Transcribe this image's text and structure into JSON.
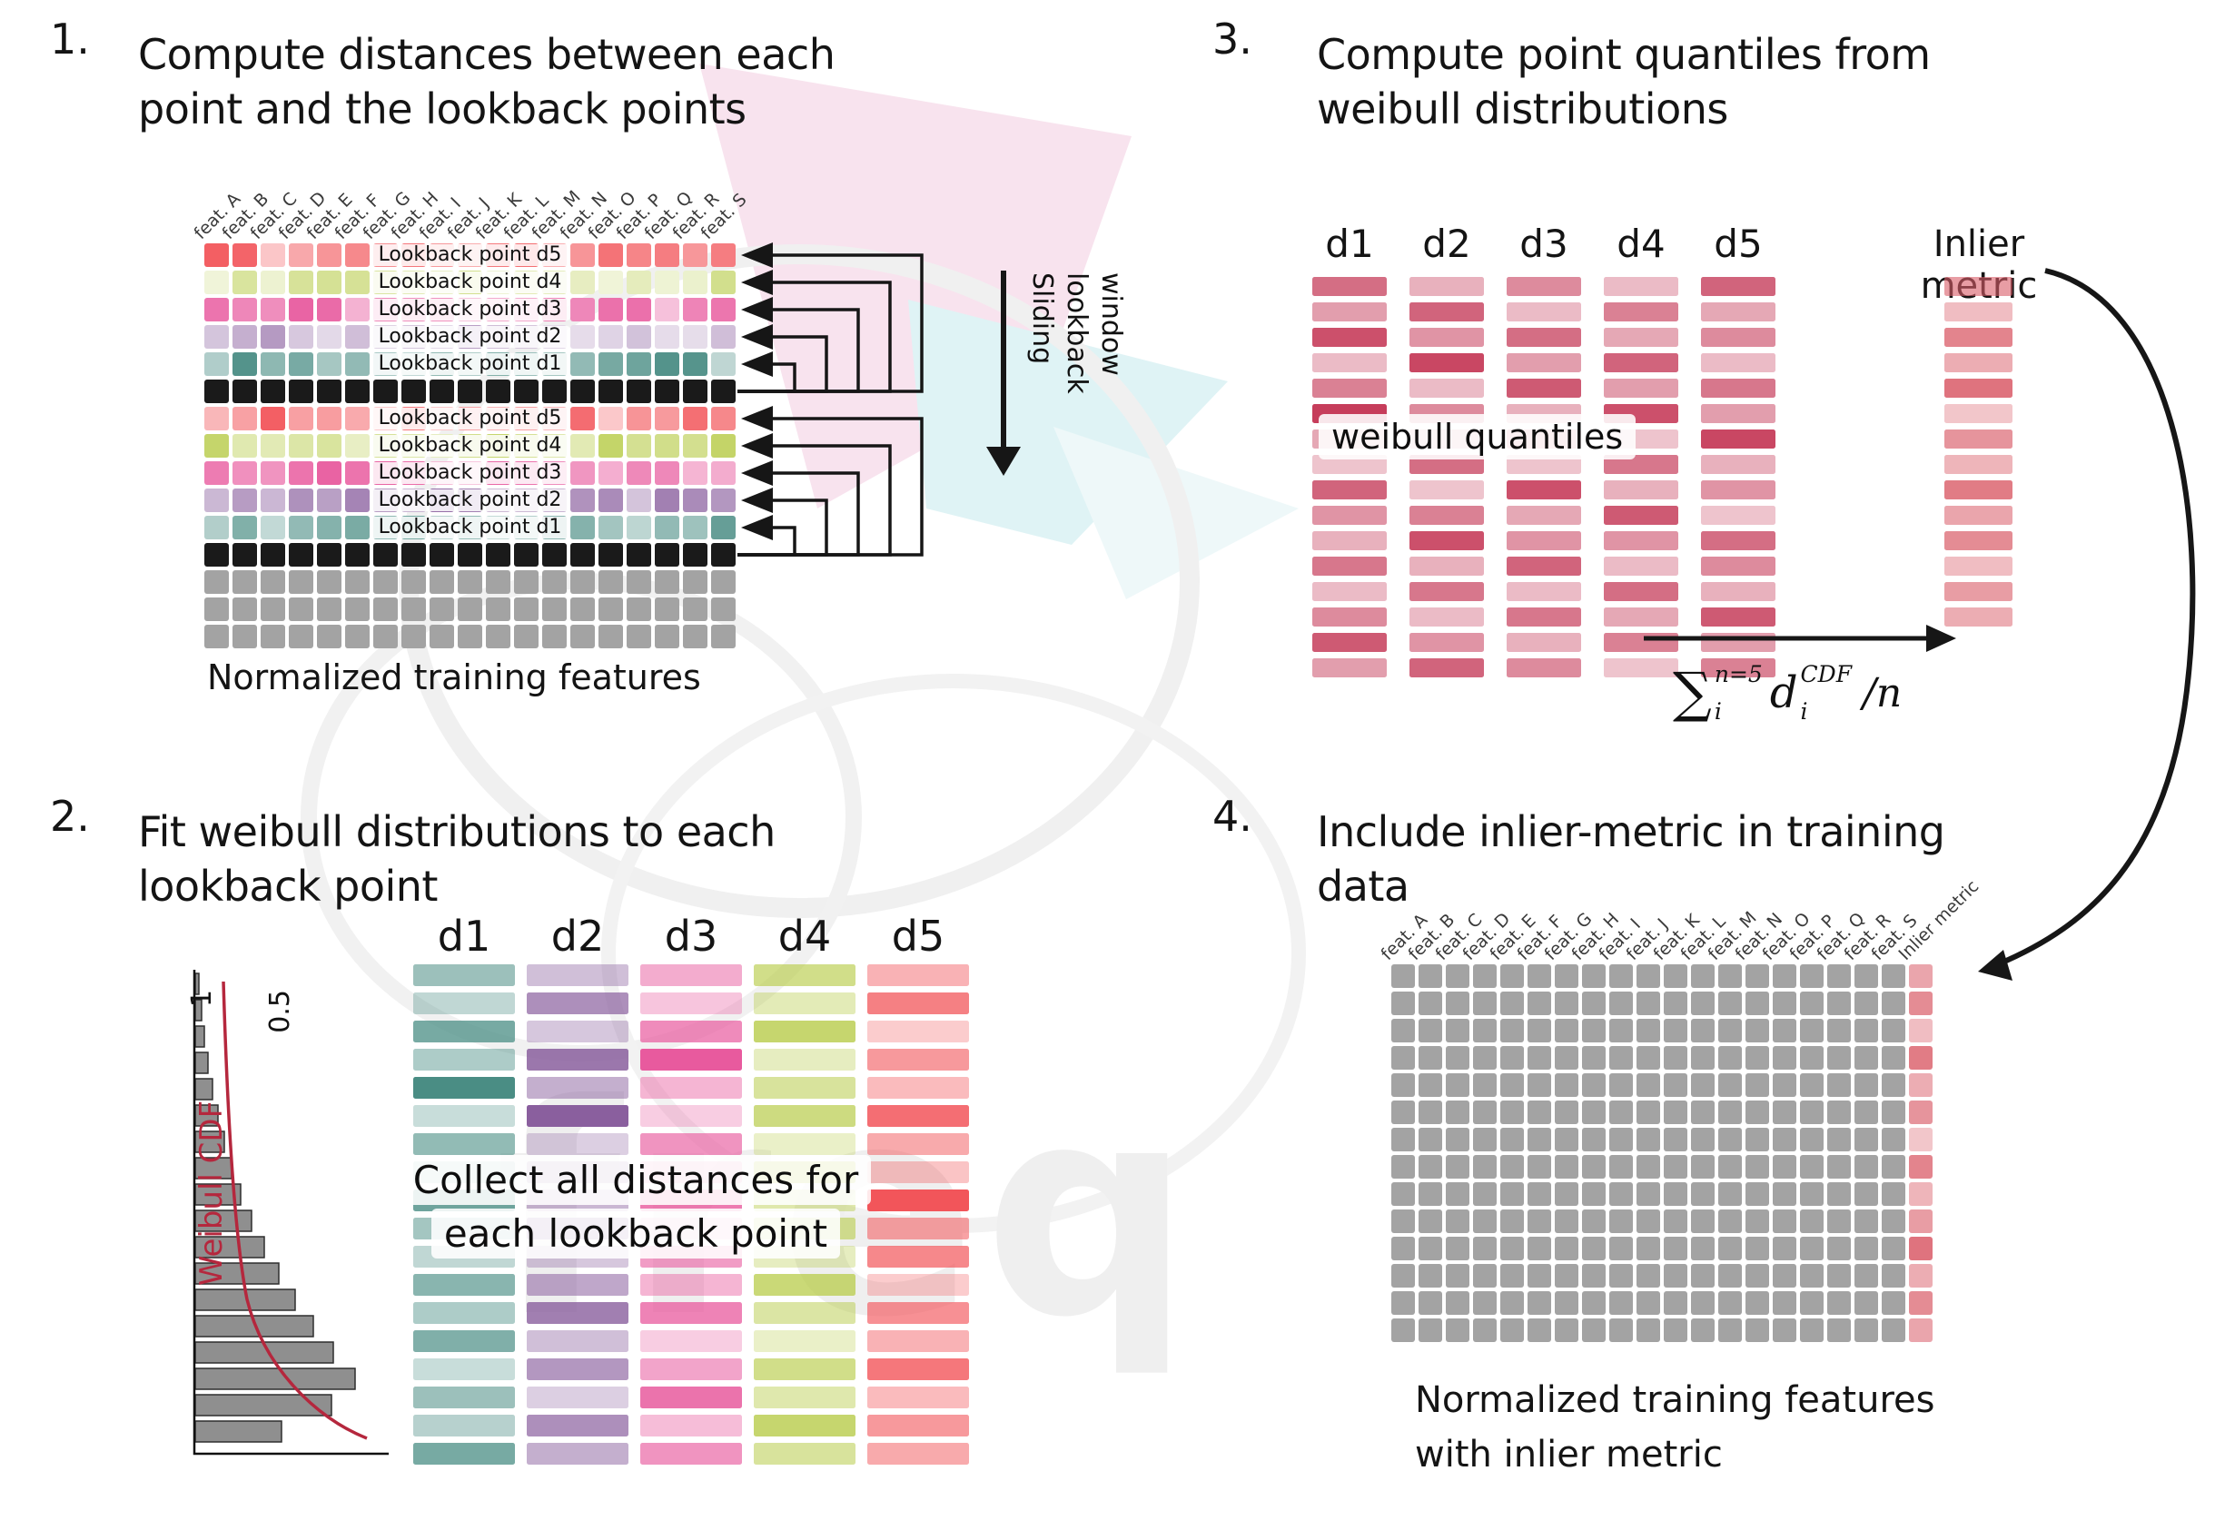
{
  "features": [
    "feat. A",
    "feat. B",
    "feat. C",
    "feat. D",
    "feat. E",
    "feat. F",
    "feat. G",
    "feat. H",
    "feat. I",
    "feat. J",
    "feat. K",
    "feat. L",
    "feat. M",
    "feat. N",
    "feat. O",
    "feat. P",
    "feat. Q",
    "feat. R",
    "feat. S"
  ],
  "colors": {
    "d1": "#4a8d84",
    "d2": "#8a5f9e",
    "d3": "#e85a9e",
    "d4": "#b8cc4a",
    "d5": "#f2555a",
    "black_row": "#1a1a1a",
    "gray_cell": "#a3a3a3",
    "quantile": "#c63d5b",
    "inlier": "#d95b67",
    "arrow": "#161616",
    "cdf_curve": "#b5273d"
  },
  "panel1": {
    "number": "1.",
    "title_line1": "Compute distances between each",
    "title_line2": "point and the lookback points",
    "rows": [
      {
        "kind": "d5",
        "label": "Lookback point d5",
        "pale": false
      },
      {
        "kind": "d4",
        "label": "Lookback point d4",
        "pale": true
      },
      {
        "kind": "d3",
        "label": "Lookback point d3",
        "pale": false
      },
      {
        "kind": "d2",
        "label": "Lookback point d2",
        "pale": true
      },
      {
        "kind": "d1",
        "label": "Lookback point d1",
        "pale": false
      },
      {
        "kind": "black"
      },
      {
        "kind": "d5",
        "label": "Lookback point d5",
        "pale": false
      },
      {
        "kind": "d4",
        "label": "Lookback point d4",
        "pale": false
      },
      {
        "kind": "d3",
        "label": "Lookback point d3",
        "pale": false
      },
      {
        "kind": "d2",
        "label": "Lookback point d2",
        "pale": false
      },
      {
        "kind": "d1",
        "label": "Lookback point d1",
        "pale": false
      },
      {
        "kind": "black"
      },
      {
        "kind": "gray"
      },
      {
        "kind": "gray"
      },
      {
        "kind": "gray"
      }
    ],
    "sliding_label": "Sliding lookback window",
    "caption": "Normalized training features"
  },
  "panel2": {
    "number": "2.",
    "title_line1": "Fit weibull distributions to each",
    "title_line2": "lookback point",
    "plot": {
      "ylabel": "Weibull CDF",
      "tick_1": "1",
      "tick_05": "0.5",
      "bar_lengths": [
        4,
        7,
        10,
        14,
        19,
        25,
        32,
        40,
        50,
        62,
        76,
        92,
        110,
        130,
        152,
        176,
        150,
        95
      ]
    },
    "columns": [
      {
        "label": "d1",
        "color_key": "d1",
        "opacities": [
          0.55,
          0.35,
          0.75,
          0.45,
          1,
          0.3,
          0.6,
          0.4,
          0.8,
          0.5,
          0.35,
          0.65,
          0.45,
          0.7,
          0.3,
          0.55,
          0.4,
          0.75
        ]
      },
      {
        "label": "d2",
        "color_key": "d2",
        "opacities": [
          0.4,
          0.7,
          0.35,
          0.85,
          0.5,
          1,
          0.3,
          0.6,
          0.45,
          0.75,
          0.35,
          0.55,
          0.8,
          0.4,
          0.65,
          0.3,
          0.7,
          0.5
        ]
      },
      {
        "label": "d3",
        "color_key": "d3",
        "opacities": [
          0.5,
          0.35,
          0.7,
          1,
          0.45,
          0.3,
          0.65,
          0.5,
          0.8,
          0.35,
          0.6,
          0.45,
          0.75,
          0.3,
          0.55,
          0.85,
          0.4,
          0.65
        ]
      },
      {
        "label": "d4",
        "color_key": "d4",
        "opacities": [
          0.65,
          0.4,
          0.8,
          0.35,
          0.55,
          0.7,
          0.3,
          1,
          0.45,
          0.6,
          0.35,
          0.75,
          0.5,
          0.3,
          0.65,
          0.45,
          0.8,
          0.55
        ]
      },
      {
        "label": "d5",
        "color_key": "d5",
        "opacities": [
          0.45,
          0.75,
          0.3,
          0.6,
          0.4,
          0.85,
          0.5,
          0.35,
          1,
          0.55,
          0.7,
          0.3,
          0.65,
          0.45,
          0.8,
          0.4,
          0.6,
          0.5
        ]
      }
    ],
    "overlay_line1": "Collect all distances for",
    "overlay_line2": "each lookback point"
  },
  "panel3": {
    "number": "3.",
    "title_line1": "Compute point quantiles from",
    "title_line2": "weibull distributions",
    "columns": [
      {
        "label": "d1",
        "opacities": [
          0.75,
          0.5,
          0.9,
          0.35,
          0.65,
          1,
          0.45,
          0.3,
          0.8,
          0.55,
          0.4,
          0.7,
          0.35,
          0.6,
          0.85,
          0.5
        ]
      },
      {
        "label": "d2",
        "opacities": [
          0.4,
          0.8,
          0.55,
          0.95,
          0.35,
          0.6,
          0.45,
          0.75,
          0.3,
          0.65,
          0.9,
          0.4,
          0.7,
          0.35,
          0.55,
          0.8
        ]
      },
      {
        "label": "d3",
        "opacities": [
          0.6,
          0.35,
          0.75,
          0.5,
          0.85,
          0.4,
          0.65,
          0.3,
          0.9,
          0.45,
          0.55,
          0.8,
          0.35,
          0.7,
          0.4,
          0.6
        ]
      },
      {
        "label": "d4",
        "opacities": [
          0.35,
          0.65,
          0.45,
          0.8,
          0.5,
          0.9,
          0.3,
          0.7,
          0.4,
          0.85,
          0.55,
          0.35,
          0.75,
          0.45,
          0.65,
          0.3
        ]
      },
      {
        "label": "d5",
        "opacities": [
          0.8,
          0.45,
          0.6,
          0.35,
          0.7,
          0.5,
          0.95,
          0.4,
          0.55,
          0.3,
          0.75,
          0.6,
          0.4,
          0.85,
          0.5,
          0.65
        ]
      }
    ],
    "overlay": "weibull quantiles",
    "inlier": {
      "label": "Inlier metric",
      "opacities": [
        0.6,
        0.4,
        0.75,
        0.5,
        0.85,
        0.35,
        0.65,
        0.45,
        0.8,
        0.55,
        0.7,
        0.4,
        0.6,
        0.5
      ]
    },
    "formula": {
      "sigma": "∑",
      "sigma_sup": "n=5",
      "sigma_sub": "i",
      "d": "d",
      "d_sup": "CDF",
      "d_sub": "i",
      "divisor": "/n"
    }
  },
  "panel4": {
    "number": "4.",
    "title_line1": "Include inlier-metric in training",
    "title_line2": "data",
    "inlier_header": "Inlier metric",
    "grid": {
      "rows": 14,
      "cols": 20
    },
    "inlier_opacities": [
      0.55,
      0.7,
      0.4,
      0.8,
      0.5,
      0.65,
      0.35,
      0.75,
      0.45,
      0.6,
      0.85,
      0.5,
      0.7,
      0.55
    ],
    "caption_line1": "Normalized training features",
    "caption_line2": "with inlier metric"
  },
  "watermark": {
    "text": "freq"
  }
}
